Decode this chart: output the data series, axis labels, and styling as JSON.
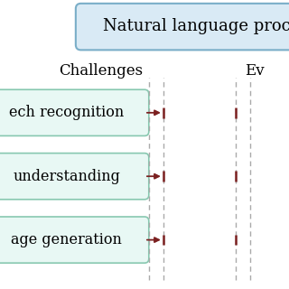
{
  "title_text": "Natural language proc",
  "title_box_color": "#d9eaf5",
  "title_box_border": "#7aaec8",
  "col1_label": "Challenges",
  "col2_label": "Ev",
  "boxes": [
    "ech recognition",
    "understanding",
    "age generation"
  ],
  "box_fill": "#e8f8f4",
  "box_border": "#88c8b0",
  "arrow_color": "#7b2020",
  "dashed_color": "#aaaaaa",
  "bg_color": "#ffffff",
  "font_size": 11.5,
  "label_font_size": 12,
  "title_font_size": 13
}
